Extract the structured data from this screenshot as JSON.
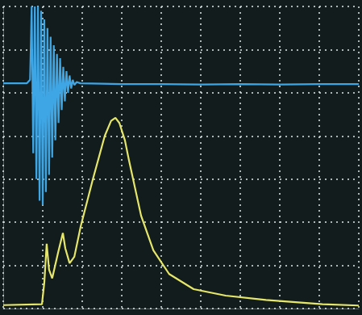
{
  "chart_data": {
    "type": "line",
    "xlim": [
      0,
      9
    ],
    "xticks": [
      0,
      1,
      2,
      3,
      4,
      5,
      6,
      7,
      8,
      9
    ],
    "ylim": [
      0,
      7
    ],
    "yticks": [
      0,
      1,
      2,
      3,
      4,
      5,
      6,
      7
    ],
    "grid": true,
    "tick_labels": false,
    "series": [
      {
        "color": "#3fa6e6",
        "x": [
          0,
          0.6,
          0.68,
          0.72,
          0.76,
          0.8,
          0.84,
          0.88,
          0.92,
          0.96,
          1.0,
          1.04,
          1.08,
          1.12,
          1.16,
          1.2,
          1.24,
          1.28,
          1.32,
          1.36,
          1.4,
          1.44,
          1.48,
          1.52,
          1.56,
          1.6,
          1.64,
          1.68,
          1.72,
          1.76,
          1.8,
          1.86,
          1.95,
          2.5,
          3,
          4,
          5,
          6,
          7,
          8,
          9
        ],
        "values": [
          5.22,
          5.22,
          5.3,
          7.0,
          3.6,
          7.0,
          3.0,
          7.0,
          2.5,
          6.9,
          2.4,
          6.7,
          2.7,
          6.5,
          3.1,
          6.3,
          3.5,
          6.1,
          3.9,
          5.9,
          4.3,
          5.8,
          4.6,
          5.6,
          4.8,
          5.5,
          5.0,
          5.4,
          5.1,
          5.3,
          5.18,
          5.25,
          5.22,
          5.21,
          5.2,
          5.2,
          5.19,
          5.2,
          5.19,
          5.2,
          5.2
        ]
      },
      {
        "color": "#e6e66a",
        "x": [
          0,
          0.98,
          1.04,
          1.1,
          1.16,
          1.24,
          1.39,
          1.51,
          1.57,
          1.68,
          1.8,
          1.96,
          2.27,
          2.57,
          2.73,
          2.84,
          2.94,
          3.08,
          3.18,
          3.49,
          3.8,
          4.2,
          4.82,
          5.63,
          6.65,
          8.08,
          9
        ],
        "values": [
          0.08,
          0.1,
          0.6,
          1.5,
          0.9,
          0.7,
          1.3,
          1.75,
          1.4,
          1.05,
          1.2,
          1.9,
          3.0,
          4.0,
          4.35,
          4.42,
          4.3,
          3.9,
          3.45,
          2.15,
          1.35,
          0.8,
          0.45,
          0.3,
          0.2,
          0.1,
          0.07
        ]
      }
    ]
  }
}
